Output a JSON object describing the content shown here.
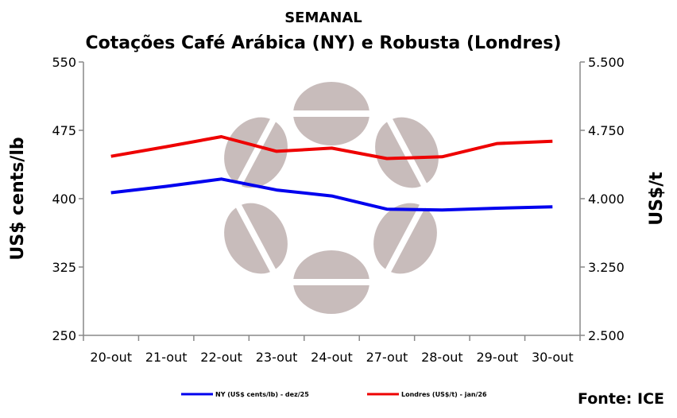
{
  "chart_data": {
    "type": "line",
    "title": "SEMANAL",
    "subtitle": "Cotações Café Arábica (NY) e Robusta (Londres)",
    "categories": [
      "20-out",
      "21-out",
      "22-out",
      "23-out",
      "24-out",
      "27-out",
      "28-out",
      "29-out",
      "30-out"
    ],
    "ylabel_left": "US$ cents/lb",
    "ylabel_right": "US$/t",
    "ylim_left": [
      250,
      550
    ],
    "ylim_right": [
      2500,
      5500
    ],
    "yticks_left": [
      "550",
      "475",
      "400",
      "325",
      "250"
    ],
    "yticks_right": [
      "5.500",
      "4.750",
      "4.000",
      "3.250",
      "2.500"
    ],
    "grid": false,
    "legend_position": "bottom",
    "series": [
      {
        "name": "NY (US$ cents/lb) - dez/25",
        "axis": "left",
        "color": "#0000ee",
        "values": [
          406.5,
          413.5,
          421.5,
          409.5,
          403,
          388.5,
          387.5,
          389.5,
          391
        ]
      },
      {
        "name": "Londres (US$/t) - jan/26",
        "axis": "right",
        "color": "#ee0000",
        "values": [
          4465,
          4570,
          4680,
          4520,
          4555,
          4440,
          4460,
          4605,
          4630
        ]
      }
    ]
  },
  "source": "Fonte: ICE"
}
